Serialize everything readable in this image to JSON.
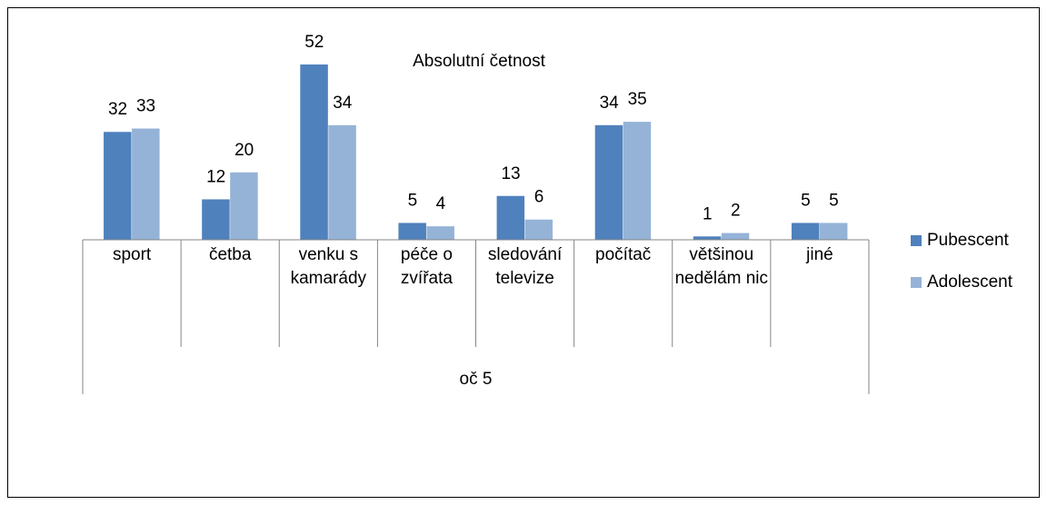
{
  "chart_data": {
    "type": "bar",
    "title": "Absolutní četnost",
    "categories": [
      "sport",
      "četba",
      "venku s kamarády",
      "péče o zvířata",
      "sledování televize",
      "počítač",
      "většinou nedělám nic",
      "jiné"
    ],
    "group_label": "oč 5",
    "series": [
      {
        "name": "Pubescent",
        "color": "#4f81bd",
        "values": [
          32,
          12,
          52,
          5,
          13,
          34,
          1,
          5
        ]
      },
      {
        "name": "Adolescent",
        "color": "#95b3d7",
        "values": [
          33,
          20,
          34,
          4,
          6,
          35,
          2,
          5
        ]
      }
    ],
    "legend": "right"
  }
}
